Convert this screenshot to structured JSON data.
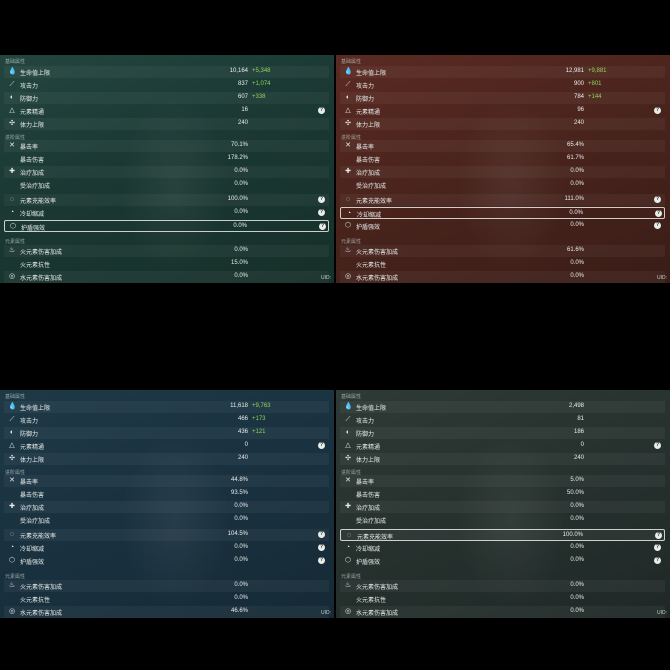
{
  "colors": {
    "bonus": "#8fd35b",
    "text": "#e9eeec",
    "highlight_border": "#ebebe6"
  },
  "panels": [
    {
      "sections": [
        "基础属性",
        "进阶属性",
        "元素属性"
      ],
      "uid": "UID:",
      "rows": [
        {
          "icon": "hp-drop-icon",
          "glyph": "💧",
          "label": "生命值上限",
          "value": "10,164",
          "bonus": "+5,348",
          "q": false
        },
        {
          "icon": "sword-icon",
          "glyph": "⟋",
          "label": "攻击力",
          "value": "837",
          "bonus": "+1,074",
          "q": false
        },
        {
          "icon": "shield-icon",
          "glyph": "◐",
          "label": "防御力",
          "value": "607",
          "bonus": "+338",
          "q": false
        },
        {
          "icon": "mastery-icon",
          "glyph": "△",
          "label": "元素精通",
          "value": "16",
          "bonus": "",
          "q": true
        },
        {
          "icon": "stamina-icon",
          "glyph": "✣",
          "label": "体力上限",
          "value": "240",
          "bonus": "",
          "q": false
        },
        {
          "icon": "crit-rate-icon",
          "glyph": "✕",
          "label": "暴击率",
          "value": "70.1%",
          "bonus": "",
          "q": false
        },
        {
          "icon": "",
          "glyph": "",
          "label": "暴击伤害",
          "value": "178.2%",
          "bonus": "",
          "q": false
        },
        {
          "icon": "healing-icon",
          "glyph": "✚",
          "label": "治疗加成",
          "value": "0.0%",
          "bonus": "",
          "q": false
        },
        {
          "icon": "",
          "glyph": "",
          "label": "受治疗加成",
          "value": "0.0%",
          "bonus": "",
          "q": false
        },
        {
          "icon": "energy-recharge-icon",
          "glyph": "◌",
          "label": "元素充能效率",
          "value": "100.0%",
          "bonus": "",
          "q": true
        },
        {
          "icon": "cooldown-icon",
          "glyph": "◔",
          "label": "冷却缩减",
          "value": "0.0%",
          "bonus": "",
          "q": true
        },
        {
          "icon": "shield-strength-icon",
          "glyph": "⬡",
          "label": "护盾强效",
          "value": "0.0%",
          "bonus": "",
          "q": true
        },
        {
          "icon": "pyro-icon",
          "glyph": "♨",
          "label": "火元素伤害加成",
          "value": "0.0%",
          "bonus": "",
          "q": false
        },
        {
          "icon": "",
          "glyph": "",
          "label": "火元素抗性",
          "value": "15.0%",
          "bonus": "",
          "q": false
        },
        {
          "icon": "hydro-icon",
          "glyph": "◎",
          "label": "水元素伤害加成",
          "value": "0.0%",
          "bonus": "",
          "q": false
        }
      ]
    },
    {
      "sections": [
        "基础属性",
        "进阶属性",
        "元素属性"
      ],
      "uid": "UID:",
      "rows": [
        {
          "icon": "hp-drop-icon",
          "glyph": "💧",
          "label": "生命值上限",
          "value": "12,981",
          "bonus": "+9,881",
          "q": false
        },
        {
          "icon": "sword-icon",
          "glyph": "⟋",
          "label": "攻击力",
          "value": "900",
          "bonus": "+801",
          "q": false
        },
        {
          "icon": "shield-icon",
          "glyph": "◐",
          "label": "防御力",
          "value": "784",
          "bonus": "+144",
          "q": false
        },
        {
          "icon": "mastery-icon",
          "glyph": "△",
          "label": "元素精通",
          "value": "96",
          "bonus": "",
          "q": true
        },
        {
          "icon": "stamina-icon",
          "glyph": "✣",
          "label": "体力上限",
          "value": "240",
          "bonus": "",
          "q": false
        },
        {
          "icon": "crit-rate-icon",
          "glyph": "✕",
          "label": "暴击率",
          "value": "65.4%",
          "bonus": "",
          "q": false
        },
        {
          "icon": "",
          "glyph": "",
          "label": "暴击伤害",
          "value": "61.7%",
          "bonus": "",
          "q": false
        },
        {
          "icon": "healing-icon",
          "glyph": "✚",
          "label": "治疗加成",
          "value": "0.0%",
          "bonus": "",
          "q": false
        },
        {
          "icon": "",
          "glyph": "",
          "label": "受治疗加成",
          "value": "0.0%",
          "bonus": "",
          "q": false
        },
        {
          "icon": "energy-recharge-icon",
          "glyph": "◌",
          "label": "元素充能效率",
          "value": "111.0%",
          "bonus": "",
          "q": true
        },
        {
          "icon": "cooldown-icon",
          "glyph": "◔",
          "label": "冷却缩减",
          "value": "0.0%",
          "bonus": "",
          "q": true
        },
        {
          "icon": "shield-strength-icon",
          "glyph": "⬡",
          "label": "护盾强效",
          "value": "0.0%",
          "bonus": "",
          "q": true
        },
        {
          "icon": "pyro-icon",
          "glyph": "♨",
          "label": "火元素伤害加成",
          "value": "61.6%",
          "bonus": "",
          "q": false
        },
        {
          "icon": "",
          "glyph": "",
          "label": "火元素抗性",
          "value": "0.0%",
          "bonus": "",
          "q": false
        },
        {
          "icon": "hydro-icon",
          "glyph": "◎",
          "label": "水元素伤害加成",
          "value": "0.0%",
          "bonus": "",
          "q": false
        }
      ]
    },
    {
      "sections": [
        "基础属性",
        "进阶属性",
        "元素属性"
      ],
      "uid": "UID:",
      "rows": [
        {
          "icon": "hp-drop-icon",
          "glyph": "💧",
          "label": "生命值上限",
          "value": "11,618",
          "bonus": "+9,763",
          "q": false
        },
        {
          "icon": "sword-icon",
          "glyph": "⟋",
          "label": "攻击力",
          "value": "466",
          "bonus": "+173",
          "q": false
        },
        {
          "icon": "shield-icon",
          "glyph": "◐",
          "label": "防御力",
          "value": "436",
          "bonus": "+121",
          "q": false
        },
        {
          "icon": "mastery-icon",
          "glyph": "△",
          "label": "元素精通",
          "value": "0",
          "bonus": "",
          "q": true
        },
        {
          "icon": "stamina-icon",
          "glyph": "✣",
          "label": "体力上限",
          "value": "240",
          "bonus": "",
          "q": false
        },
        {
          "icon": "crit-rate-icon",
          "glyph": "✕",
          "label": "暴击率",
          "value": "44.8%",
          "bonus": "",
          "q": false
        },
        {
          "icon": "",
          "glyph": "",
          "label": "暴击伤害",
          "value": "93.5%",
          "bonus": "",
          "q": false
        },
        {
          "icon": "healing-icon",
          "glyph": "✚",
          "label": "治疗加成",
          "value": "0.0%",
          "bonus": "",
          "q": false
        },
        {
          "icon": "",
          "glyph": "",
          "label": "受治疗加成",
          "value": "0.0%",
          "bonus": "",
          "q": false
        },
        {
          "icon": "energy-recharge-icon",
          "glyph": "◌",
          "label": "元素充能效率",
          "value": "104.5%",
          "bonus": "",
          "q": true
        },
        {
          "icon": "cooldown-icon",
          "glyph": "◔",
          "label": "冷却缩减",
          "value": "0.0%",
          "bonus": "",
          "q": true
        },
        {
          "icon": "shield-strength-icon",
          "glyph": "⬡",
          "label": "护盾强效",
          "value": "0.0%",
          "bonus": "",
          "q": true
        },
        {
          "icon": "pyro-icon",
          "glyph": "♨",
          "label": "火元素伤害加成",
          "value": "0.0%",
          "bonus": "",
          "q": false
        },
        {
          "icon": "",
          "glyph": "",
          "label": "火元素抗性",
          "value": "0.0%",
          "bonus": "",
          "q": false
        },
        {
          "icon": "hydro-icon",
          "glyph": "◎",
          "label": "水元素伤害加成",
          "value": "46.6%",
          "bonus": "",
          "q": false
        }
      ]
    },
    {
      "sections": [
        "基础属性",
        "进阶属性",
        "元素属性"
      ],
      "uid": "UID:",
      "rows": [
        {
          "icon": "hp-drop-icon",
          "glyph": "💧",
          "label": "生命值上限",
          "value": "2,498",
          "bonus": "",
          "q": false
        },
        {
          "icon": "sword-icon",
          "glyph": "⟋",
          "label": "攻击力",
          "value": "81",
          "bonus": "",
          "q": false
        },
        {
          "icon": "shield-icon",
          "glyph": "◐",
          "label": "防御力",
          "value": "186",
          "bonus": "",
          "q": false
        },
        {
          "icon": "mastery-icon",
          "glyph": "△",
          "label": "元素精通",
          "value": "0",
          "bonus": "",
          "q": true
        },
        {
          "icon": "stamina-icon",
          "glyph": "✣",
          "label": "体力上限",
          "value": "240",
          "bonus": "",
          "q": false
        },
        {
          "icon": "crit-rate-icon",
          "glyph": "✕",
          "label": "暴击率",
          "value": "5.0%",
          "bonus": "",
          "q": false
        },
        {
          "icon": "",
          "glyph": "",
          "label": "暴击伤害",
          "value": "50.0%",
          "bonus": "",
          "q": false
        },
        {
          "icon": "healing-icon",
          "glyph": "✚",
          "label": "治疗加成",
          "value": "0.0%",
          "bonus": "",
          "q": false
        },
        {
          "icon": "",
          "glyph": "",
          "label": "受治疗加成",
          "value": "0.0%",
          "bonus": "",
          "q": false
        },
        {
          "icon": "energy-recharge-icon",
          "glyph": "◌",
          "label": "元素充能效率",
          "value": "100.0%",
          "bonus": "",
          "q": true
        },
        {
          "icon": "cooldown-icon",
          "glyph": "◔",
          "label": "冷却缩减",
          "value": "0.0%",
          "bonus": "",
          "q": true
        },
        {
          "icon": "shield-strength-icon",
          "glyph": "⬡",
          "label": "护盾强效",
          "value": "0.0%",
          "bonus": "",
          "q": true
        },
        {
          "icon": "pyro-icon",
          "glyph": "♨",
          "label": "火元素伤害加成",
          "value": "0.0%",
          "bonus": "",
          "q": false
        },
        {
          "icon": "",
          "glyph": "",
          "label": "火元素抗性",
          "value": "0.0%",
          "bonus": "",
          "q": false
        },
        {
          "icon": "hydro-icon",
          "glyph": "◎",
          "label": "水元素伤害加成",
          "value": "0.0%",
          "bonus": "",
          "q": false
        }
      ]
    }
  ]
}
